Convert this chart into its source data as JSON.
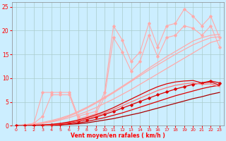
{
  "xlabel": "Vent moyen/en rafales ( km/h )",
  "background_color": "#cceeff",
  "grid_color": "#aacccc",
  "text_color": "#ff0000",
  "x": [
    0,
    1,
    2,
    3,
    4,
    5,
    6,
    7,
    8,
    9,
    10,
    11,
    12,
    13,
    14,
    15,
    16,
    17,
    18,
    19,
    20,
    21,
    22,
    23
  ],
  "smooth_line1": [
    0,
    0.1,
    0.3,
    0.5,
    0.8,
    1.2,
    1.7,
    2.3,
    3.0,
    3.8,
    4.7,
    5.6,
    6.6,
    7.6,
    8.7,
    9.8,
    10.9,
    12.0,
    13.1,
    14.2,
    15.3,
    16.4,
    17.5,
    18.0
  ],
  "smooth_line2": [
    0,
    0.15,
    0.4,
    0.7,
    1.1,
    1.6,
    2.2,
    3.0,
    3.9,
    4.9,
    6.0,
    7.1,
    8.3,
    9.5,
    10.8,
    12.1,
    13.3,
    14.5,
    15.6,
    16.7,
    17.8,
    18.5,
    19.0,
    19.2
  ],
  "jagged1": [
    0,
    0.2,
    0.5,
    7.0,
    7.0,
    7.0,
    7.0,
    2.0,
    2.5,
    3.0,
    7.0,
    21.0,
    18.0,
    13.5,
    15.5,
    21.5,
    16.5,
    21.0,
    21.5,
    24.5,
    23.0,
    21.0,
    23.0,
    18.5
  ],
  "jagged2": [
    0,
    0.2,
    0.5,
    2.0,
    6.5,
    6.5,
    6.5,
    1.5,
    2.0,
    2.5,
    6.0,
    18.5,
    15.5,
    11.5,
    13.5,
    19.0,
    14.5,
    18.5,
    19.0,
    21.0,
    20.5,
    19.0,
    21.0,
    16.5
  ],
  "mid_line1": [
    0,
    0.1,
    0.3,
    0.5,
    0.9,
    1.4,
    2.0,
    2.8,
    3.7,
    4.7,
    5.8,
    6.9,
    8.1,
    9.3,
    10.5,
    11.7,
    12.8,
    13.9,
    15.0,
    16.0,
    17.0,
    17.8,
    18.5,
    18.7
  ],
  "dark_cluster": [
    [
      0,
      0,
      0,
      0,
      0.1,
      0.2,
      0.3,
      0.4,
      0.6,
      0.9,
      1.2,
      1.5,
      1.9,
      2.3,
      2.7,
      3.2,
      3.7,
      4.2,
      4.7,
      5.2,
      5.7,
      6.1,
      6.6,
      7.0
    ],
    [
      0,
      0,
      0,
      0,
      0.1,
      0.2,
      0.4,
      0.6,
      0.9,
      1.3,
      1.7,
      2.2,
      2.7,
      3.3,
      3.9,
      4.5,
      5.1,
      5.7,
      6.3,
      6.8,
      7.3,
      7.8,
      8.2,
      8.5
    ],
    [
      0,
      0,
      0,
      0.1,
      0.2,
      0.4,
      0.6,
      0.9,
      1.3,
      1.8,
      2.4,
      3.0,
      3.7,
      4.4,
      5.1,
      5.8,
      6.5,
      7.1,
      7.7,
      8.2,
      8.7,
      9.0,
      9.4,
      9.0
    ],
    [
      0,
      0,
      0,
      0.1,
      0.2,
      0.4,
      0.7,
      1.0,
      1.5,
      2.0,
      2.7,
      3.4,
      4.2,
      5.0,
      5.8,
      6.6,
      7.4,
      8.0,
      8.5,
      8.8,
      9.0,
      8.7,
      8.8,
      8.2
    ],
    [
      0,
      0,
      0.1,
      0.2,
      0.3,
      0.5,
      0.8,
      1.2,
      1.7,
      2.3,
      3.0,
      3.8,
      4.7,
      5.6,
      6.5,
      7.4,
      8.2,
      8.8,
      9.2,
      9.4,
      9.5,
      9.0,
      9.2,
      8.5
    ]
  ],
  "color_light_pink": "#ffaaaa",
  "color_med_pink": "#ff7777",
  "color_dark_red": "#dd0000",
  "color_darkest_red": "#aa0000",
  "ylim": [
    0,
    26
  ],
  "xlim": [
    -0.5,
    23.5
  ],
  "yticks": [
    0,
    5,
    10,
    15,
    20,
    25
  ],
  "xticks": [
    0,
    1,
    2,
    3,
    4,
    5,
    6,
    7,
    8,
    9,
    10,
    11,
    12,
    13,
    14,
    15,
    16,
    17,
    18,
    19,
    20,
    21,
    22,
    23
  ]
}
